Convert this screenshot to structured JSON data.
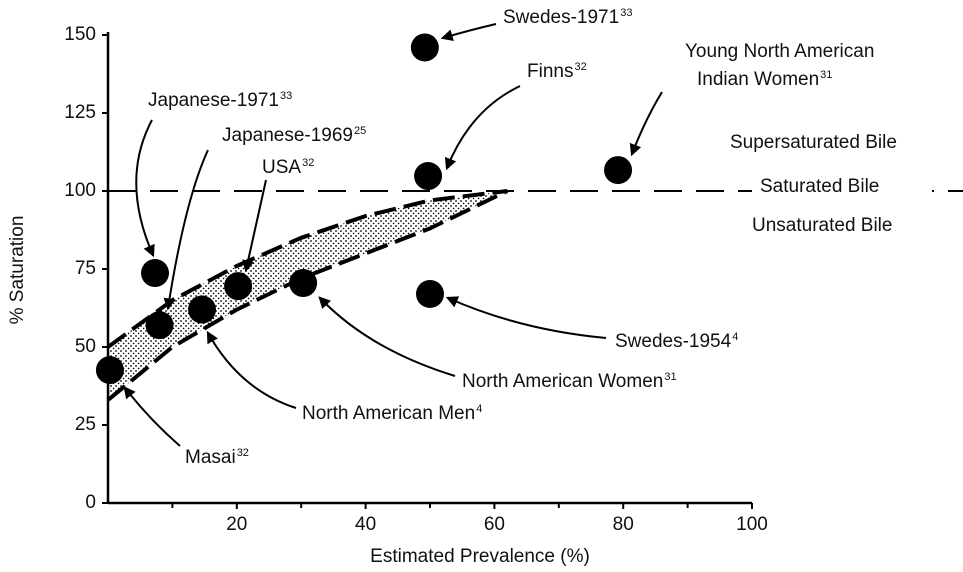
{
  "chart_data": {
    "type": "scatter",
    "x_label": "Estimated Prevalence (%)",
    "y_label": "% Saturation",
    "xlim": [
      0,
      100
    ],
    "xticks": [
      20,
      40,
      60,
      80,
      100
    ],
    "ylim": [
      0,
      150
    ],
    "yticks": [
      0,
      25,
      50,
      75,
      100,
      125,
      150
    ],
    "color": "#000000",
    "x": [
      0.3,
      7.3,
      8,
      14.6,
      20.2,
      30.3,
      49.2,
      49.7,
      50,
      79.2
    ],
    "values": [
      42.6,
      73.7,
      57,
      62,
      69.5,
      70.5,
      146,
      104.8,
      67,
      106.7
    ],
    "labels": [
      "Masai",
      "Japanese-1971",
      "Japanese-1969",
      "North American Men",
      "USA",
      "North American Women",
      "Swedes-1971",
      "Finns",
      "Swedes-1954",
      "Young North American Indian Women"
    ],
    "refs": [
      "32",
      "33",
      "25",
      "4",
      "32",
      "31",
      "33",
      "32",
      "4",
      "31"
    ],
    "band": {
      "x": [
        0,
        10,
        20,
        30,
        40,
        50,
        62
      ],
      "upper": [
        50,
        65,
        76,
        85,
        92,
        97,
        100
      ],
      "lower": [
        33,
        50,
        62,
        72,
        80,
        88,
        100
      ]
    },
    "reference_line": 100,
    "annotations": [
      "Supersaturated Bile",
      "Saturated Bile",
      "Unsaturated Bile"
    ]
  }
}
